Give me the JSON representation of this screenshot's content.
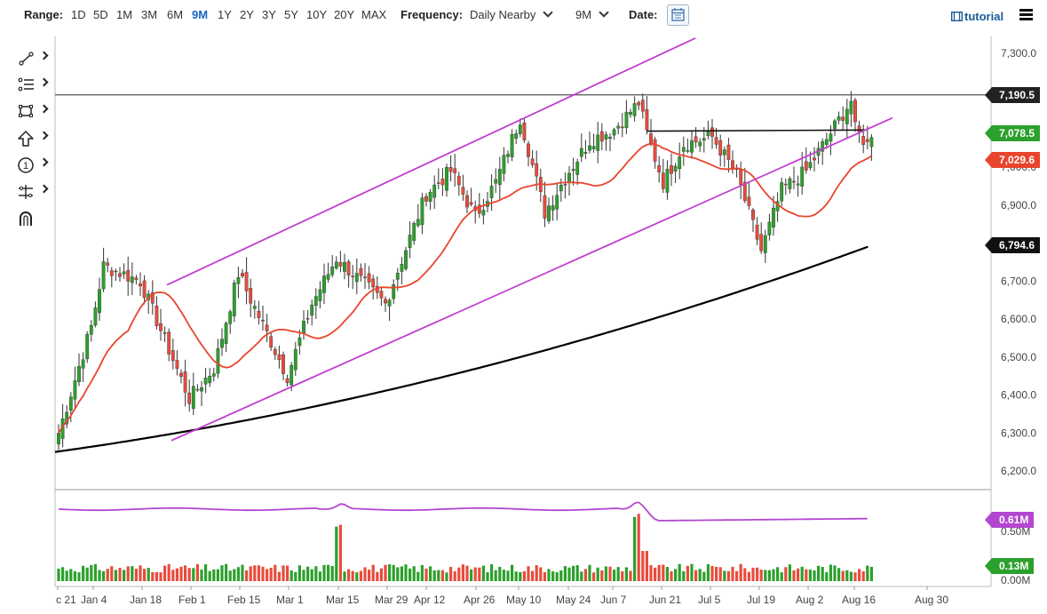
{
  "toolbar": {
    "range_label": "Range:",
    "ranges": [
      "1D",
      "5D",
      "1M",
      "3M",
      "6M",
      "9M",
      "1Y",
      "2Y",
      "3Y",
      "5Y",
      "10Y",
      "20Y",
      "MAX"
    ],
    "active_range": "9M",
    "frequency_label": "Frequency:",
    "frequency_value": "Daily Nearby",
    "period_value": "9M",
    "date_label": "Date:",
    "tutorial_label": "tutorial"
  },
  "icons": [
    "line-tool-icon",
    "fib-tool-icon",
    "rectangle-tool-icon",
    "arrow-tool-icon",
    "number-tool-icon",
    "measure-tool-icon",
    "magnet-icon",
    "calendar-icon",
    "menu-icon"
  ],
  "colors": {
    "up_candle": "#2ca02c",
    "down_candle": "#e74c3c",
    "ma_short": "#e8452c",
    "ma_long": "#000000",
    "channel": "#c23fd0",
    "volume_avg": "#b347d1",
    "active_range": "#1565c0"
  },
  "price_tags": {
    "resistance": "7,190.5",
    "last": "7,078.5",
    "ma_short": "7,029.6",
    "ma_long": "6,794.6"
  },
  "volume_tags": {
    "avg": "0.61M",
    "last": "0.13M"
  },
  "chart_data": {
    "type": "candlestick",
    "y_axis": {
      "range": [
        6180,
        7330
      ],
      "ticks": [
        "7,300.0",
        "7,200.0",
        "7,100.0",
        "7,000.0",
        "6,900.0",
        "6,800.0",
        "6,700.0",
        "6,600.0",
        "6,500.0",
        "6,400.0",
        "6,300.0",
        "6,200.0"
      ]
    },
    "x_axis": {
      "ticks": [
        "c 21",
        "Jan 4",
        "Jan 18",
        "Feb 1",
        "Feb 15",
        "Mar 1",
        "Mar 15",
        "Mar 29",
        "Apr 12",
        "Apr 26",
        "May 10",
        "May 24",
        "Jun 7",
        "Jun 21",
        "Jul 5",
        "Jul 19",
        "Aug 2",
        "Aug 16",
        "Aug 30"
      ]
    },
    "volume_axis": {
      "ticks": [
        "0.50M",
        "0.00M"
      ]
    },
    "keyframes": [
      {
        "label": "c 21",
        "close": 6300
      },
      {
        "label": "Jan 4",
        "close": 6580
      },
      {
        "label": "Jan 6",
        "close": 6740
      },
      {
        "label": "Jan 18",
        "close": 6700
      },
      {
        "label": "Jan 25",
        "close": 6520
      },
      {
        "label": "Feb 1",
        "close": 6390
      },
      {
        "label": "Feb 8",
        "close": 6470
      },
      {
        "label": "Feb 15",
        "close": 6720
      },
      {
        "label": "Mar 1",
        "close": 6450
      },
      {
        "label": "Mar 8",
        "close": 6640
      },
      {
        "label": "Mar 15",
        "close": 6760
      },
      {
        "label": "Mar 29",
        "close": 6640
      },
      {
        "label": "Apr 12",
        "close": 6930
      },
      {
        "label": "Apr 19",
        "close": 6990
      },
      {
        "label": "Apr 26",
        "close": 6870
      },
      {
        "label": "May 3",
        "close": 6960
      },
      {
        "label": "May 10",
        "close": 7130
      },
      {
        "label": "May 17",
        "close": 6880
      },
      {
        "label": "May 24",
        "close": 6990
      },
      {
        "label": "Jun 1",
        "close": 7070
      },
      {
        "label": "Jun 7",
        "close": 7100
      },
      {
        "label": "Jun 12",
        "close": 7170
      },
      {
        "label": "Jun 16",
        "close": 7090
      },
      {
        "label": "Jun 21",
        "close": 6960
      },
      {
        "label": "Jun 28",
        "close": 7060
      },
      {
        "label": "Jul 5",
        "close": 7080
      },
      {
        "label": "Jul 12",
        "close": 6980
      },
      {
        "label": "Jul 19",
        "close": 6780
      },
      {
        "label": "Jul 26",
        "close": 6940
      },
      {
        "label": "Aug 2",
        "close": 6990
      },
      {
        "label": "Aug 9",
        "close": 7090
      },
      {
        "label": "Aug 13",
        "close": 7175
      },
      {
        "label": "Aug 16",
        "close": 7100
      },
      {
        "label": "Aug 18",
        "close": 7060
      },
      {
        "label": "Aug 20",
        "close": 7078.5
      }
    ],
    "channel_lines": [
      {
        "name": "upper",
        "from": {
          "date": "Jan 27",
          "price": 6690
        },
        "to": {
          "date": "Jun 16",
          "price": 7340
        }
      },
      {
        "name": "lower",
        "from": {
          "date": "Jan 27",
          "price": 6280
        },
        "to": {
          "date": "Aug 21",
          "price": 7130
        }
      }
    ],
    "horizontal_lines": [
      {
        "name": "resistance",
        "price": 7190.5
      },
      {
        "name": "range-top",
        "from_date": "Jun 14",
        "to_date": "Aug 17",
        "price": 7095
      }
    ],
    "moving_averages": [
      {
        "name": "short",
        "end_value": 7029.6
      },
      {
        "name": "long",
        "start_value": 6250,
        "end_value": 6794.6
      }
    ],
    "grid": false,
    "legend": "none"
  }
}
